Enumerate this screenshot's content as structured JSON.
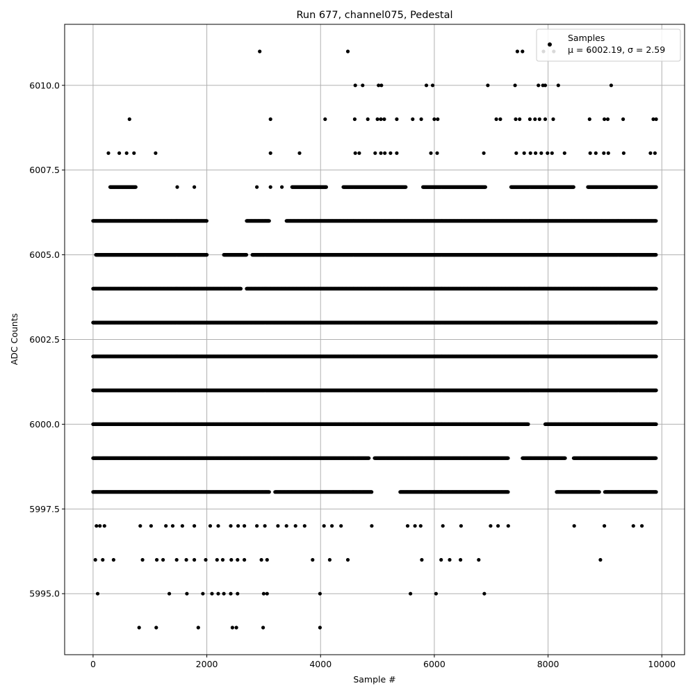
{
  "chart_data": {
    "type": "scatter",
    "title": "Run 677, channel075, Pedestal",
    "xlabel": "Sample #",
    "ylabel": "ADC Counts",
    "xlim": [
      -500,
      10400
    ],
    "ylim": [
      5993.2,
      6011.8
    ],
    "x_ticks": [
      0,
      2000,
      4000,
      6000,
      8000,
      10000
    ],
    "x_tick_labels": [
      "0",
      "2000",
      "4000",
      "6000",
      "8000",
      "10000"
    ],
    "y_ticks": [
      5995.0,
      5997.5,
      6000.0,
      6002.5,
      6005.0,
      6007.5,
      6010.0
    ],
    "y_tick_labels": [
      "5995.0",
      "5997.5",
      "6000.0",
      "6002.5",
      "6005.0",
      "6007.5",
      "6010.0"
    ],
    "grid": true,
    "legend_placement": "top-right",
    "series": [
      {
        "name": "Samples",
        "color": "#000000",
        "marker": "circle",
        "runs": [
          {
            "y": 6003,
            "x": [
              [
                0,
                9900
              ]
            ]
          },
          {
            "y": 6002,
            "x": [
              [
                0,
                9900
              ]
            ]
          },
          {
            "y": 6001,
            "x": [
              [
                0,
                9900
              ]
            ]
          },
          {
            "y": 6004,
            "x": [
              [
                0,
                2600
              ],
              [
                2700,
                9900
              ]
            ]
          },
          {
            "y": 6000,
            "x": [
              [
                0,
                7650
              ],
              [
                7950,
                9900
              ]
            ]
          },
          {
            "y": 5999,
            "x": [
              [
                0,
                4850
              ],
              [
                4950,
                7300
              ],
              [
                7550,
                8300
              ],
              [
                8450,
                9900
              ]
            ]
          },
          {
            "y": 6005,
            "x": [
              [
                50,
                2000
              ],
              [
                2300,
                2700
              ],
              [
                2800,
                9900
              ]
            ]
          },
          {
            "y": 6006,
            "x": [
              [
                0,
                2000
              ],
              [
                2700,
                3100
              ],
              [
                3400,
                9900
              ]
            ]
          },
          {
            "y": 5998,
            "x": [
              [
                0,
                3100
              ],
              [
                3200,
                4900
              ],
              [
                5400,
                7300
              ],
              [
                8150,
                8900
              ],
              [
                9000,
                9900
              ]
            ]
          },
          {
            "y": 6007,
            "x": [
              [
                300,
                750
              ],
              [
                3500,
                4100
              ],
              [
                4400,
                5500
              ],
              [
                5800,
                6900
              ],
              [
                7350,
                8450
              ],
              [
                8700,
                9900
              ]
            ]
          }
        ],
        "points": [
          [
            2930,
            6011
          ],
          [
            4480,
            6011
          ],
          [
            7460,
            6011
          ],
          [
            7550,
            6011
          ],
          [
            7920,
            6011
          ],
          [
            8100,
            6011
          ],
          [
            8720,
            6011
          ],
          [
            4610,
            6010
          ],
          [
            4740,
            6010
          ],
          [
            5020,
            6010
          ],
          [
            5070,
            6010
          ],
          [
            5860,
            6010
          ],
          [
            5970,
            6010
          ],
          [
            6940,
            6010
          ],
          [
            7420,
            6010
          ],
          [
            7830,
            6010
          ],
          [
            7910,
            6010
          ],
          [
            7950,
            6010
          ],
          [
            8180,
            6010
          ],
          [
            9110,
            6010
          ],
          [
            640,
            6009
          ],
          [
            3120,
            6009
          ],
          [
            4080,
            6009
          ],
          [
            4600,
            6009
          ],
          [
            4830,
            6009
          ],
          [
            5000,
            6009
          ],
          [
            5060,
            6009
          ],
          [
            5120,
            6009
          ],
          [
            5340,
            6009
          ],
          [
            5620,
            6009
          ],
          [
            5770,
            6009
          ],
          [
            6000,
            6009
          ],
          [
            6060,
            6009
          ],
          [
            7090,
            6009
          ],
          [
            7160,
            6009
          ],
          [
            7430,
            6009
          ],
          [
            7500,
            6009
          ],
          [
            7680,
            6009
          ],
          [
            7770,
            6009
          ],
          [
            7850,
            6009
          ],
          [
            7950,
            6009
          ],
          [
            8090,
            6009
          ],
          [
            8730,
            6009
          ],
          [
            8990,
            6009
          ],
          [
            9050,
            6009
          ],
          [
            9320,
            6009
          ],
          [
            9850,
            6009
          ],
          [
            9900,
            6009
          ],
          [
            270,
            6008
          ],
          [
            460,
            6008
          ],
          [
            590,
            6008
          ],
          [
            720,
            6008
          ],
          [
            1100,
            6008
          ],
          [
            3120,
            6008
          ],
          [
            3630,
            6008
          ],
          [
            4610,
            6008
          ],
          [
            4680,
            6008
          ],
          [
            4960,
            6008
          ],
          [
            5060,
            6008
          ],
          [
            5130,
            6008
          ],
          [
            5230,
            6008
          ],
          [
            5340,
            6008
          ],
          [
            5940,
            6008
          ],
          [
            6050,
            6008
          ],
          [
            6870,
            6008
          ],
          [
            7440,
            6008
          ],
          [
            7580,
            6008
          ],
          [
            7690,
            6008
          ],
          [
            7780,
            6008
          ],
          [
            7880,
            6008
          ],
          [
            7990,
            6008
          ],
          [
            8070,
            6008
          ],
          [
            8290,
            6008
          ],
          [
            8740,
            6008
          ],
          [
            8840,
            6008
          ],
          [
            8980,
            6008
          ],
          [
            9060,
            6008
          ],
          [
            9330,
            6008
          ],
          [
            9800,
            6008
          ],
          [
            9880,
            6008
          ],
          [
            1480,
            6007
          ],
          [
            1780,
            6007
          ],
          [
            2880,
            6007
          ],
          [
            3120,
            6007
          ],
          [
            3320,
            6007
          ],
          [
            60,
            5997
          ],
          [
            120,
            5997
          ],
          [
            200,
            5997
          ],
          [
            830,
            5997
          ],
          [
            1020,
            5997
          ],
          [
            1280,
            5997
          ],
          [
            1400,
            5997
          ],
          [
            1570,
            5997
          ],
          [
            1780,
            5997
          ],
          [
            2060,
            5997
          ],
          [
            2200,
            5997
          ],
          [
            2420,
            5997
          ],
          [
            2550,
            5997
          ],
          [
            2660,
            5997
          ],
          [
            2880,
            5997
          ],
          [
            3020,
            5997
          ],
          [
            3250,
            5997
          ],
          [
            3400,
            5997
          ],
          [
            3560,
            5997
          ],
          [
            3720,
            5997
          ],
          [
            4060,
            5997
          ],
          [
            4200,
            5997
          ],
          [
            4360,
            5997
          ],
          [
            4900,
            5997
          ],
          [
            5530,
            5997
          ],
          [
            5660,
            5997
          ],
          [
            5760,
            5997
          ],
          [
            6150,
            5997
          ],
          [
            6470,
            5997
          ],
          [
            6990,
            5997
          ],
          [
            7120,
            5997
          ],
          [
            7300,
            5997
          ],
          [
            8460,
            5997
          ],
          [
            8990,
            5997
          ],
          [
            9500,
            5997
          ],
          [
            9650,
            5997
          ],
          [
            40,
            5996
          ],
          [
            170,
            5996
          ],
          [
            360,
            5996
          ],
          [
            870,
            5996
          ],
          [
            1120,
            5996
          ],
          [
            1230,
            5996
          ],
          [
            1470,
            5996
          ],
          [
            1640,
            5996
          ],
          [
            1780,
            5996
          ],
          [
            1980,
            5996
          ],
          [
            2180,
            5996
          ],
          [
            2280,
            5996
          ],
          [
            2430,
            5996
          ],
          [
            2540,
            5996
          ],
          [
            2660,
            5996
          ],
          [
            2960,
            5996
          ],
          [
            3060,
            5996
          ],
          [
            3860,
            5996
          ],
          [
            4160,
            5996
          ],
          [
            4480,
            5996
          ],
          [
            5780,
            5996
          ],
          [
            6120,
            5996
          ],
          [
            6270,
            5996
          ],
          [
            6460,
            5996
          ],
          [
            6780,
            5996
          ],
          [
            8920,
            5996
          ],
          [
            80,
            5995
          ],
          [
            1340,
            5995
          ],
          [
            1650,
            5995
          ],
          [
            1930,
            5995
          ],
          [
            2090,
            5995
          ],
          [
            2200,
            5995
          ],
          [
            2300,
            5995
          ],
          [
            2420,
            5995
          ],
          [
            2540,
            5995
          ],
          [
            3000,
            5995
          ],
          [
            3060,
            5995
          ],
          [
            3990,
            5995
          ],
          [
            5580,
            5995
          ],
          [
            6030,
            5995
          ],
          [
            6880,
            5995
          ],
          [
            810,
            5994
          ],
          [
            1110,
            5994
          ],
          [
            1850,
            5994
          ],
          [
            2450,
            5994
          ],
          [
            2520,
            5994
          ],
          [
            2990,
            5994
          ],
          [
            3990,
            5994
          ]
        ]
      }
    ],
    "legend": {
      "series_label": "Samples",
      "stats_label": "μ = 6002.19, σ = 2.59"
    }
  }
}
